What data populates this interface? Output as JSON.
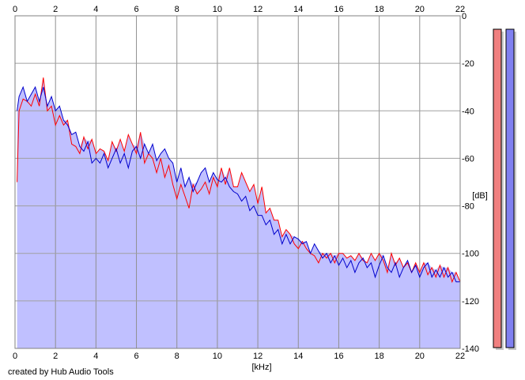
{
  "chart_data": {
    "type": "area",
    "title": "",
    "xlabel": "[kHz]",
    "ylabel": "[dB]",
    "xlim": [
      0,
      22
    ],
    "ylim": [
      -140,
      0
    ],
    "x_ticks": [
      "0",
      "2",
      "4",
      "6",
      "8",
      "10",
      "12",
      "14",
      "16",
      "18",
      "20",
      "22"
    ],
    "y_ticks": [
      "0",
      "-20",
      "-40",
      "-60",
      "-80",
      "-100",
      "-120",
      "-140"
    ],
    "grid": true,
    "series": [
      {
        "color": "#ff0000",
        "points": [
          [
            0.1,
            -70
          ],
          [
            0.2,
            -40
          ],
          [
            0.4,
            -35
          ],
          [
            0.6,
            -36
          ],
          [
            0.8,
            -38
          ],
          [
            1.0,
            -33
          ],
          [
            1.2,
            -38
          ],
          [
            1.4,
            -26
          ],
          [
            1.6,
            -40
          ],
          [
            1.8,
            -38
          ],
          [
            2.0,
            -46
          ],
          [
            2.2,
            -42
          ],
          [
            2.4,
            -46
          ],
          [
            2.6,
            -44
          ],
          [
            2.8,
            -54
          ],
          [
            3.0,
            -55
          ],
          [
            3.2,
            -58
          ],
          [
            3.4,
            -51
          ],
          [
            3.6,
            -56
          ],
          [
            3.8,
            -52
          ],
          [
            4.0,
            -58
          ],
          [
            4.2,
            -56
          ],
          [
            4.4,
            -57
          ],
          [
            4.6,
            -61
          ],
          [
            4.8,
            -53
          ],
          [
            5.0,
            -57
          ],
          [
            5.2,
            -52
          ],
          [
            5.4,
            -57
          ],
          [
            5.6,
            -50
          ],
          [
            5.8,
            -54
          ],
          [
            6.0,
            -58
          ],
          [
            6.2,
            -49
          ],
          [
            6.4,
            -62
          ],
          [
            6.6,
            -58
          ],
          [
            6.8,
            -60
          ],
          [
            7.0,
            -66
          ],
          [
            7.2,
            -60
          ],
          [
            7.4,
            -68
          ],
          [
            7.6,
            -63
          ],
          [
            7.8,
            -71
          ],
          [
            8.0,
            -77
          ],
          [
            8.2,
            -71
          ],
          [
            8.4,
            -76
          ],
          [
            8.6,
            -81
          ],
          [
            8.8,
            -71
          ],
          [
            9.0,
            -75
          ],
          [
            9.2,
            -73
          ],
          [
            9.4,
            -70
          ],
          [
            9.6,
            -75
          ],
          [
            9.8,
            -68
          ],
          [
            10.0,
            -72
          ],
          [
            10.2,
            -64
          ],
          [
            10.4,
            -71
          ],
          [
            10.6,
            -64
          ],
          [
            10.8,
            -72
          ],
          [
            11.0,
            -72
          ],
          [
            11.2,
            -66
          ],
          [
            11.4,
            -70
          ],
          [
            11.6,
            -74
          ],
          [
            11.8,
            -71
          ],
          [
            12.0,
            -79
          ],
          [
            12.2,
            -72
          ],
          [
            12.4,
            -83
          ],
          [
            12.6,
            -81
          ],
          [
            12.8,
            -86
          ],
          [
            13.0,
            -86
          ],
          [
            13.2,
            -93
          ],
          [
            13.4,
            -90
          ],
          [
            13.6,
            -92
          ],
          [
            13.8,
            -96
          ],
          [
            14.0,
            -98
          ],
          [
            14.2,
            -95
          ],
          [
            14.4,
            -98
          ],
          [
            14.6,
            -100
          ],
          [
            14.8,
            -101
          ],
          [
            15.0,
            -104
          ],
          [
            15.2,
            -100
          ],
          [
            15.4,
            -102
          ],
          [
            15.6,
            -100
          ],
          [
            15.8,
            -104
          ],
          [
            16.0,
            -100
          ],
          [
            16.2,
            -100
          ],
          [
            16.4,
            -102
          ],
          [
            16.6,
            -101
          ],
          [
            16.8,
            -103
          ],
          [
            17.0,
            -100
          ],
          [
            17.2,
            -103
          ],
          [
            17.4,
            -104
          ],
          [
            17.6,
            -100
          ],
          [
            17.8,
            -103
          ],
          [
            18.0,
            -100
          ],
          [
            18.2,
            -103
          ],
          [
            18.4,
            -108
          ],
          [
            18.6,
            -100
          ],
          [
            18.8,
            -105
          ],
          [
            19.0,
            -102
          ],
          [
            19.2,
            -106
          ],
          [
            19.4,
            -104
          ],
          [
            19.6,
            -108
          ],
          [
            19.8,
            -104
          ],
          [
            20.0,
            -108
          ],
          [
            20.2,
            -104
          ],
          [
            20.4,
            -109
          ],
          [
            20.6,
            -106
          ],
          [
            20.8,
            -110
          ],
          [
            21.0,
            -105
          ],
          [
            21.2,
            -110
          ],
          [
            21.4,
            -106
          ],
          [
            21.6,
            -112
          ],
          [
            21.8,
            -108
          ],
          [
            22.0,
            -112
          ]
        ]
      },
      {
        "color": "#0000cc",
        "points": [
          [
            0.1,
            -40
          ],
          [
            0.2,
            -34
          ],
          [
            0.4,
            -30
          ],
          [
            0.6,
            -36
          ],
          [
            0.8,
            -33
          ],
          [
            1.0,
            -30
          ],
          [
            1.2,
            -36
          ],
          [
            1.4,
            -30
          ],
          [
            1.6,
            -38
          ],
          [
            1.8,
            -34
          ],
          [
            2.0,
            -40
          ],
          [
            2.2,
            -38
          ],
          [
            2.4,
            -44
          ],
          [
            2.6,
            -46
          ],
          [
            2.8,
            -50
          ],
          [
            3.0,
            -49
          ],
          [
            3.2,
            -55
          ],
          [
            3.4,
            -57
          ],
          [
            3.6,
            -53
          ],
          [
            3.8,
            -62
          ],
          [
            4.0,
            -60
          ],
          [
            4.2,
            -62
          ],
          [
            4.4,
            -58
          ],
          [
            4.6,
            -64
          ],
          [
            4.8,
            -60
          ],
          [
            5.0,
            -56
          ],
          [
            5.2,
            -62
          ],
          [
            5.4,
            -58
          ],
          [
            5.6,
            -64
          ],
          [
            5.8,
            -57
          ],
          [
            6.0,
            -55
          ],
          [
            6.2,
            -60
          ],
          [
            6.4,
            -54
          ],
          [
            6.6,
            -58
          ],
          [
            6.8,
            -54
          ],
          [
            7.0,
            -61
          ],
          [
            7.2,
            -58
          ],
          [
            7.4,
            -56
          ],
          [
            7.6,
            -60
          ],
          [
            7.8,
            -62
          ],
          [
            8.0,
            -70
          ],
          [
            8.2,
            -64
          ],
          [
            8.4,
            -72
          ],
          [
            8.6,
            -68
          ],
          [
            8.8,
            -74
          ],
          [
            9.0,
            -70
          ],
          [
            9.2,
            -66
          ],
          [
            9.4,
            -64
          ],
          [
            9.6,
            -70
          ],
          [
            9.8,
            -66
          ],
          [
            10.0,
            -69
          ],
          [
            10.2,
            -70
          ],
          [
            10.4,
            -68
          ],
          [
            10.6,
            -72
          ],
          [
            10.8,
            -74
          ],
          [
            11.0,
            -75
          ],
          [
            11.2,
            -78
          ],
          [
            11.4,
            -76
          ],
          [
            11.6,
            -82
          ],
          [
            11.8,
            -80
          ],
          [
            12.0,
            -84
          ],
          [
            12.2,
            -84
          ],
          [
            12.4,
            -88
          ],
          [
            12.6,
            -86
          ],
          [
            12.8,
            -92
          ],
          [
            13.0,
            -90
          ],
          [
            13.2,
            -96
          ],
          [
            13.4,
            -92
          ],
          [
            13.6,
            -96
          ],
          [
            13.8,
            -93
          ],
          [
            14.0,
            -94
          ],
          [
            14.2,
            -96
          ],
          [
            14.4,
            -95
          ],
          [
            14.6,
            -100
          ],
          [
            14.8,
            -96
          ],
          [
            15.0,
            -99
          ],
          [
            15.2,
            -102
          ],
          [
            15.4,
            -100
          ],
          [
            15.6,
            -104
          ],
          [
            15.8,
            -101
          ],
          [
            16.0,
            -105
          ],
          [
            16.2,
            -102
          ],
          [
            16.4,
            -106
          ],
          [
            16.6,
            -103
          ],
          [
            16.8,
            -108
          ],
          [
            17.0,
            -104
          ],
          [
            17.2,
            -102
          ],
          [
            17.4,
            -106
          ],
          [
            17.6,
            -104
          ],
          [
            17.8,
            -110
          ],
          [
            18.0,
            -105
          ],
          [
            18.2,
            -101
          ],
          [
            18.4,
            -106
          ],
          [
            18.6,
            -108
          ],
          [
            18.8,
            -104
          ],
          [
            19.0,
            -110
          ],
          [
            19.2,
            -106
          ],
          [
            19.4,
            -103
          ],
          [
            19.6,
            -108
          ],
          [
            19.8,
            -105
          ],
          [
            20.0,
            -110
          ],
          [
            20.2,
            -106
          ],
          [
            20.4,
            -104
          ],
          [
            20.6,
            -110
          ],
          [
            20.8,
            -107
          ],
          [
            21.0,
            -110
          ],
          [
            21.2,
            -106
          ],
          [
            21.4,
            -110
          ],
          [
            21.6,
            -108
          ],
          [
            21.8,
            -112
          ],
          [
            22.0,
            -112
          ]
        ]
      }
    ],
    "fill_color": "#c0c0ff",
    "meters": [
      {
        "channel": "left",
        "color": "#f08080",
        "level_db": 0
      },
      {
        "channel": "right",
        "color": "#8080f0",
        "level_db": 0
      }
    ],
    "credit": "created by Hub Audio Tools"
  }
}
